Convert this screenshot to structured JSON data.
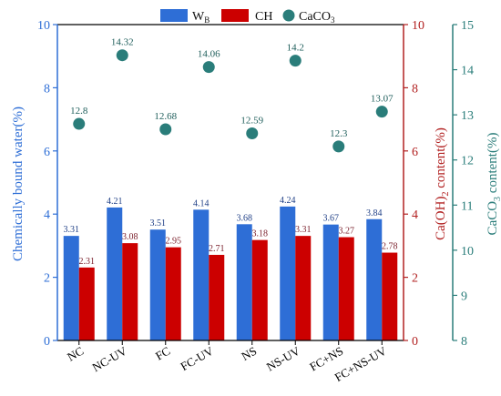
{
  "chart_data": {
    "type": "bar",
    "categories": [
      "NC",
      "NC-UV",
      "FC",
      "FC-UV",
      "NS",
      "NS-UV",
      "FC+NS",
      "FC+NS-UV"
    ],
    "legend": {
      "wb_main": "W",
      "wb_sub": "B",
      "ch": "CH",
      "caco3_main": "CaCO",
      "caco3_sub": "3",
      "placement": "top-center"
    },
    "series": [
      {
        "name": "WB",
        "axis": "left",
        "color": "#2e6ed6",
        "values": [
          3.31,
          4.21,
          3.51,
          4.14,
          3.68,
          4.24,
          3.67,
          3.84
        ]
      },
      {
        "name": "CH",
        "axis": "right1",
        "color": "#cc0000",
        "values": [
          2.31,
          3.08,
          2.95,
          2.71,
          3.18,
          3.31,
          3.27,
          2.78
        ]
      },
      {
        "name": "CaCO3",
        "axis": "right2",
        "type": "scatter",
        "color": "#2a7d7a",
        "values": [
          12.8,
          14.32,
          12.68,
          14.06,
          12.59,
          14.2,
          12.3,
          13.07
        ]
      }
    ],
    "value_labels": {
      "wb": [
        "3.31",
        "4.21",
        "3.51",
        "4.14",
        "3.68",
        "4.24",
        "3.67",
        "3.84"
      ],
      "ch": [
        "2.31",
        "3.08",
        "2.95",
        "2.71",
        "3.18",
        "3.31",
        "3.27",
        "2.78"
      ],
      "caco3": [
        "12.8",
        "14.32",
        "12.68",
        "14.06",
        "12.59",
        "14.2",
        "12.3",
        "13.07"
      ]
    },
    "axes": {
      "left": {
        "label": "Chemically bound water(%)",
        "ylim": [
          0,
          10
        ],
        "ticks": [
          "0",
          "2",
          "4",
          "6",
          "8",
          "10"
        ],
        "color": "#2e6ed6"
      },
      "right1": {
        "label_pre": "Ca(OH)",
        "label_sub": "2",
        "label_post": " content(%)",
        "ylim": [
          0,
          10
        ],
        "ticks": [
          "0",
          "2",
          "4",
          "6",
          "8",
          "10"
        ],
        "color": "#b22222"
      },
      "right2": {
        "label_pre": "CaCO",
        "label_sub": "3",
        "label_post": " content(%)",
        "ylim": [
          8,
          15
        ],
        "ticks": [
          "8",
          "9",
          "10",
          "11",
          "12",
          "13",
          "14",
          "15"
        ],
        "color": "#2a7d7a"
      }
    },
    "grid": false
  }
}
